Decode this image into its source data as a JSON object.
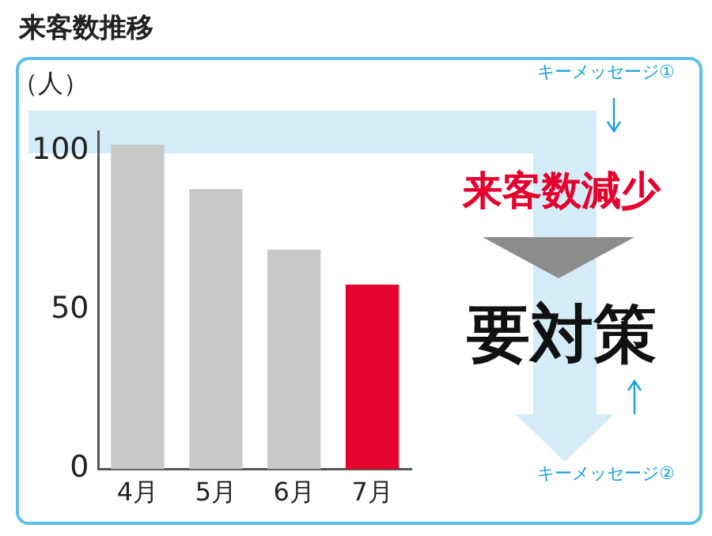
{
  "chart_data": {
    "type": "bar",
    "title": "来客数推移",
    "ylabel": "（人）",
    "categories": [
      "4月",
      "5月",
      "6月",
      "7月"
    ],
    "values": [
      102,
      88,
      69,
      58
    ],
    "colors": [
      "#c8c8c9",
      "#c8c8c9",
      "#c8c8c9",
      "#e6002d"
    ],
    "ylim": [
      0,
      106
    ],
    "yticks": [
      0,
      50,
      100
    ],
    "grid": false,
    "annotations": [
      "キーメッセージ①",
      "来客数減少",
      "要対策",
      "キーメッセージ②"
    ]
  }
}
